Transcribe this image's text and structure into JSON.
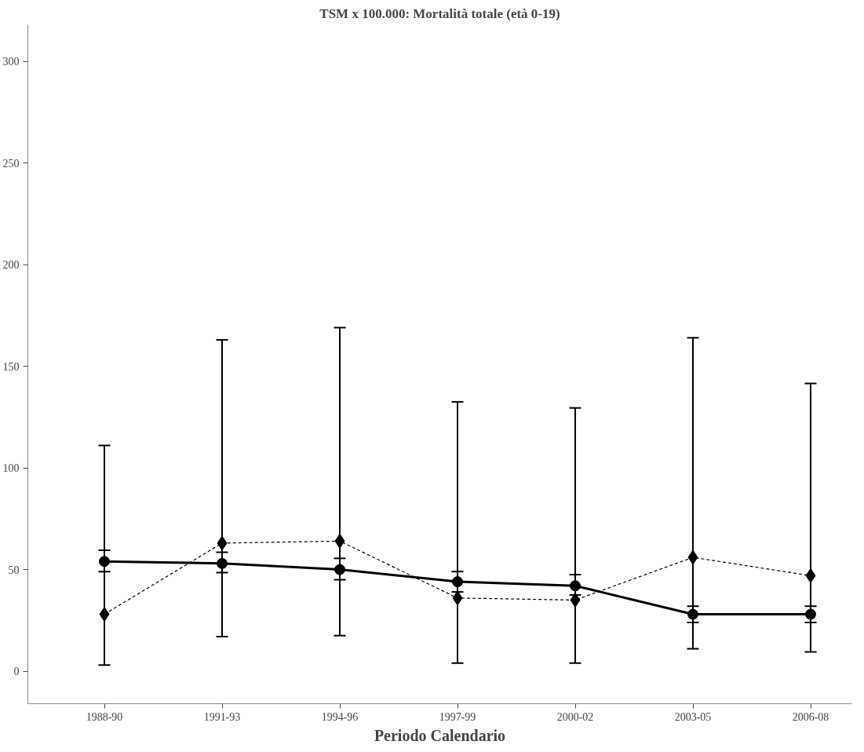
{
  "chart_data": {
    "type": "line",
    "title": "TSM x 100.000: Mortalità totale (età 0-19)",
    "xlabel": "Periodo Calendario",
    "categories": [
      "1988-90",
      "1991-93",
      "1994-96",
      "1997-99",
      "2000-02",
      "2003-05",
      "2006-08"
    ],
    "ylim": [
      -16,
      318
    ],
    "yticks": [
      0,
      50,
      100,
      150,
      200,
      250,
      300
    ],
    "grid": false,
    "series": [
      {
        "color": "#000000",
        "marker": "circle",
        "line_style": "solid",
        "values": [
          54,
          53,
          50,
          44,
          42,
          28,
          28
        ],
        "errors": [
          [
            49,
            59.5
          ],
          [
            48.5,
            58.5
          ],
          [
            45,
            55.5
          ],
          [
            39,
            49
          ],
          [
            37.5,
            47.5
          ],
          [
            24,
            32
          ],
          [
            24,
            32
          ]
        ]
      },
      {
        "color": "#000000",
        "marker": "diamond",
        "line_style": "dashed",
        "values": [
          28,
          63,
          64,
          36,
          35,
          56,
          47
        ],
        "errors": [
          [
            3,
            111
          ],
          [
            17,
            163
          ],
          [
            17.5,
            169
          ],
          [
            4,
            132.5
          ],
          [
            4,
            129.5
          ],
          [
            11,
            164
          ],
          [
            9.5,
            141.5
          ]
        ]
      }
    ]
  }
}
